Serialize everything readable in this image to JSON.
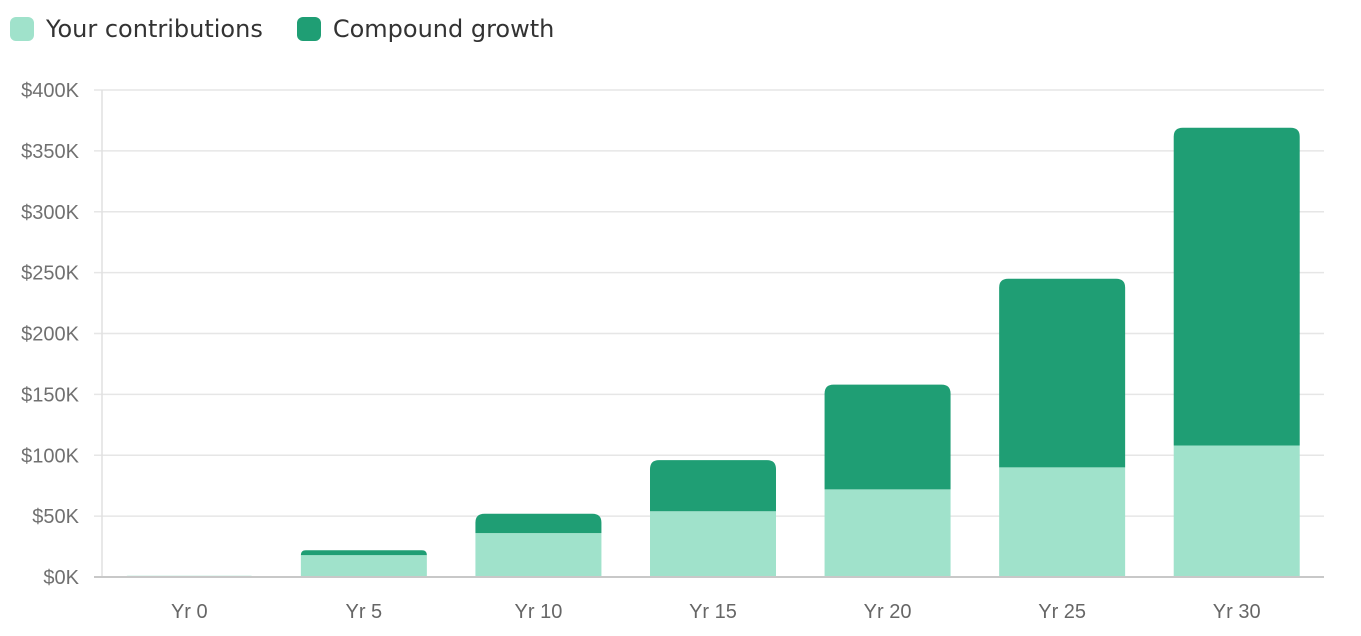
{
  "chart_data": {
    "type": "bar",
    "stacked": true,
    "categories": [
      "Yr 0",
      "Yr 5",
      "Yr 10",
      "Yr 15",
      "Yr 20",
      "Yr 25",
      "Yr 30"
    ],
    "series": [
      {
        "name": "Your contributions",
        "color": "#a0e2cb",
        "values": [
          1000,
          18000,
          36000,
          54000,
          72000,
          90000,
          108000
        ]
      },
      {
        "name": "Compound growth",
        "color": "#1f9e74",
        "values": [
          0,
          4000,
          16000,
          42000,
          86000,
          155000,
          261000
        ]
      }
    ],
    "ylim": [
      0,
      400000
    ],
    "yticks": [
      0,
      50000,
      100000,
      150000,
      200000,
      250000,
      300000,
      350000,
      400000
    ],
    "ytick_labels": [
      "$0K",
      "$50K",
      "$100K",
      "$150K",
      "$200K",
      "$250K",
      "$300K",
      "$350K",
      "$400K"
    ],
    "grid": true,
    "legend_position": "top-left",
    "title": "",
    "xlabel": "",
    "ylabel": ""
  }
}
